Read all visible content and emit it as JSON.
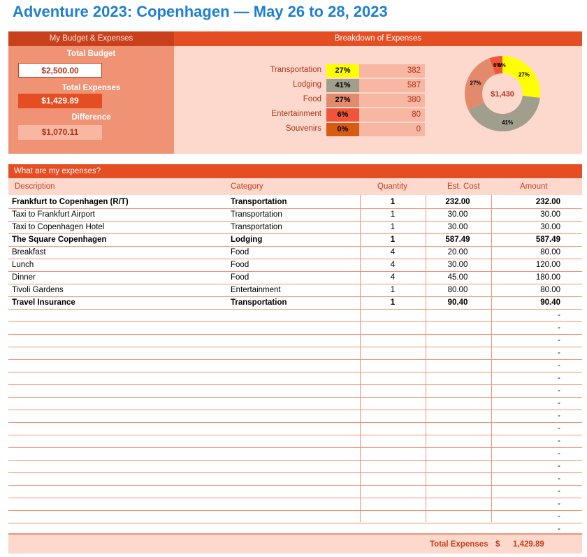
{
  "title": "Adventure 2023: Copenhagen — May 26 to 28, 2023",
  "budget_panel": {
    "header": "My Budget & Expenses",
    "total_budget_label": "Total Budget",
    "total_budget_value": "$2,500.00",
    "total_expenses_label": "Total Expenses",
    "total_expenses_value": "$1,429.89",
    "difference_label": "Difference",
    "difference_value": "$1,070.11"
  },
  "breakdown": {
    "header": "Breakdown of Expenses",
    "center_label": "$1,430",
    "items": [
      {
        "name": "Transportation",
        "pct": "27%",
        "amount": "382",
        "color": "#ffff00"
      },
      {
        "name": "Lodging",
        "pct": "41%",
        "amount": "587",
        "color": "#a09e8c"
      },
      {
        "name": "Food",
        "pct": "27%",
        "amount": "380",
        "color": "#e38a6c"
      },
      {
        "name": "Entertainment",
        "pct": "6%",
        "amount": "80",
        "color": "#f0553a"
      },
      {
        "name": "Souvenirs",
        "pct": "0%",
        "amount": "0",
        "color": "#d95b12"
      }
    ]
  },
  "chart_data": {
    "type": "pie",
    "categories": [
      "Transportation",
      "Lodging",
      "Food",
      "Entertainment",
      "Souvenirs"
    ],
    "values": [
      382,
      587,
      380,
      80,
      0
    ],
    "labels": [
      "27%",
      "41%",
      "27%",
      "6%",
      "0%"
    ],
    "center_text": "$1,430"
  },
  "expenses": {
    "header": "What are my expenses?",
    "columns": [
      "Description",
      "Category",
      "Quantity",
      "Est. Cost",
      "Amount"
    ],
    "rows": [
      {
        "desc": "Frankfurt to Copenhagen (R/T)",
        "cat": "Transportation",
        "qty": "1",
        "est": "232.00",
        "amt": "232.00",
        "bold": true
      },
      {
        "desc": "Taxi to Frankfurt Airport",
        "cat": "Transportation",
        "qty": "1",
        "est": "30.00",
        "amt": "30.00",
        "bold": false
      },
      {
        "desc": "Taxi to Copenhagen Hotel",
        "cat": "Transportation",
        "qty": "1",
        "est": "30.00",
        "amt": "30.00",
        "bold": false
      },
      {
        "desc": "The Square Copenhagen",
        "cat": "Lodging",
        "qty": "1",
        "est": "587.49",
        "amt": "587.49",
        "bold": true
      },
      {
        "desc": "Breakfast",
        "cat": "Food",
        "qty": "4",
        "est": "20.00",
        "amt": "80.00",
        "bold": false
      },
      {
        "desc": "Lunch",
        "cat": "Food",
        "qty": "4",
        "est": "30.00",
        "amt": "120.00",
        "bold": false
      },
      {
        "desc": "Dinner",
        "cat": "Food",
        "qty": "4",
        "est": "45.00",
        "amt": "180.00",
        "bold": false
      },
      {
        "desc": "Tivoli Gardens",
        "cat": "Entertainment",
        "qty": "1",
        "est": "80.00",
        "amt": "80.00",
        "bold": false
      },
      {
        "desc": "Travel Insurance",
        "cat": "Transportation",
        "qty": "1",
        "est": "90.40",
        "amt": "90.40",
        "bold": true
      },
      {
        "desc": "",
        "cat": "",
        "qty": "",
        "est": "",
        "amt": "-",
        "bold": false
      },
      {
        "desc": "",
        "cat": "",
        "qty": "",
        "est": "",
        "amt": "-",
        "bold": false
      },
      {
        "desc": "",
        "cat": "",
        "qty": "",
        "est": "",
        "amt": "-",
        "bold": false
      },
      {
        "desc": "",
        "cat": "",
        "qty": "",
        "est": "",
        "amt": "-",
        "bold": false
      },
      {
        "desc": "",
        "cat": "",
        "qty": "",
        "est": "",
        "amt": "-",
        "bold": false
      },
      {
        "desc": "",
        "cat": "",
        "qty": "",
        "est": "",
        "amt": "-",
        "bold": false
      },
      {
        "desc": "",
        "cat": "",
        "qty": "",
        "est": "",
        "amt": "-",
        "bold": false
      },
      {
        "desc": "",
        "cat": "",
        "qty": "",
        "est": "",
        "amt": "-",
        "bold": false
      },
      {
        "desc": "",
        "cat": "",
        "qty": "",
        "est": "",
        "amt": "-",
        "bold": false
      },
      {
        "desc": "",
        "cat": "",
        "qty": "",
        "est": "",
        "amt": "-",
        "bold": false
      },
      {
        "desc": "",
        "cat": "",
        "qty": "",
        "est": "",
        "amt": "-",
        "bold": false
      },
      {
        "desc": "",
        "cat": "",
        "qty": "",
        "est": "",
        "amt": "-",
        "bold": false
      },
      {
        "desc": "",
        "cat": "",
        "qty": "",
        "est": "",
        "amt": "-",
        "bold": false
      },
      {
        "desc": "",
        "cat": "",
        "qty": "",
        "est": "",
        "amt": "-",
        "bold": false
      },
      {
        "desc": "",
        "cat": "",
        "qty": "",
        "est": "",
        "amt": "-",
        "bold": false
      },
      {
        "desc": "",
        "cat": "",
        "qty": "",
        "est": "",
        "amt": "-",
        "bold": false
      },
      {
        "desc": "",
        "cat": "",
        "qty": "",
        "est": "",
        "amt": "-",
        "bold": false
      },
      {
        "desc": "",
        "cat": "",
        "qty": "",
        "est": "",
        "amt": "-",
        "bold": false
      }
    ],
    "total_label": "Total Expenses",
    "total_currency": "$",
    "total_value": "1,429.89"
  }
}
